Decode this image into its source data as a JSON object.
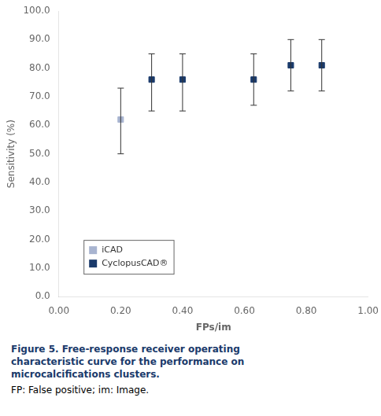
{
  "chart_data": {
    "type": "scatter",
    "xlabel": "FPs/im",
    "ylabel": "Sensitivity (%)",
    "annotations": [
      "Figure 5. Free-response receiver operating",
      "characteristic curve for the performance on",
      "microcalcifications clusters.",
      "FP: False positive; im: Image."
    ],
    "series": [
      {
        "name": "iCAD",
        "color": "#a8b4d0",
        "marker": "square",
        "x": [
          0.2
        ],
        "values": [
          62.0
        ],
        "yerr_low": [
          12.0
        ],
        "yerr_high": [
          11.0
        ]
      },
      {
        "name": "CyclopusCAD®",
        "color": "#1a3a6b",
        "marker": "square",
        "x": [
          0.3,
          0.4,
          0.63,
          0.75,
          0.85
        ],
        "values": [
          76.0,
          76.0,
          76.0,
          81.0,
          81.0
        ],
        "yerr_low": [
          11.0,
          11.0,
          9.0,
          9.0,
          9.0
        ],
        "yerr_high": [
          9.0,
          9.0,
          9.0,
          9.0,
          9.0
        ]
      }
    ],
    "xlim": [
      0.0,
      1.0
    ],
    "ylim": [
      0.0,
      100.0
    ],
    "xticks": [
      {
        "value": 0.0,
        "label": "0.00"
      },
      {
        "value": 0.2,
        "label": "0.20"
      },
      {
        "value": 0.4,
        "label": "0.40"
      },
      {
        "value": 0.6,
        "label": "0.60"
      },
      {
        "value": 0.8,
        "label": "0.80"
      },
      {
        "value": 1.0,
        "label": "1.00"
      }
    ],
    "yticks": [
      {
        "value": 0,
        "label": "0.0"
      },
      {
        "value": 10,
        "label": "10.0"
      },
      {
        "value": 20,
        "label": "20.0"
      },
      {
        "value": 30,
        "label": "30.0"
      },
      {
        "value": 40,
        "label": "40.0"
      },
      {
        "value": 50,
        "label": "50.0"
      },
      {
        "value": 60,
        "label": "60.0"
      },
      {
        "value": 70,
        "label": "70.0"
      },
      {
        "value": 80,
        "label": "80.0"
      },
      {
        "value": 90,
        "label": "90.0"
      },
      {
        "value": 100,
        "label": "100.0"
      }
    ],
    "grid": false,
    "legend": "lower left"
  }
}
